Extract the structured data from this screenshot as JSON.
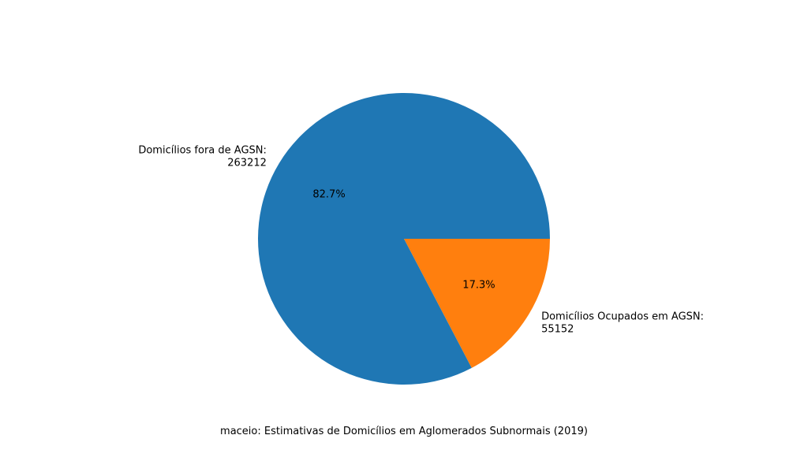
{
  "chart_data": {
    "type": "pie",
    "title": "",
    "xlabel": "maceio: Estimativas de Domicílios em Aglomerados Subnormais (2019)",
    "categories": [
      "Domicílios Ocupados em AGSN:",
      "Domicílios fora de AGSN:"
    ],
    "values": [
      55152,
      263212
    ],
    "value_labels": [
      "55152",
      "263212"
    ],
    "percent_labels": [
      "17.3%",
      "82.7%"
    ],
    "colors": [
      "#ff7f0e",
      "#1f77b4"
    ],
    "legend": "none"
  }
}
